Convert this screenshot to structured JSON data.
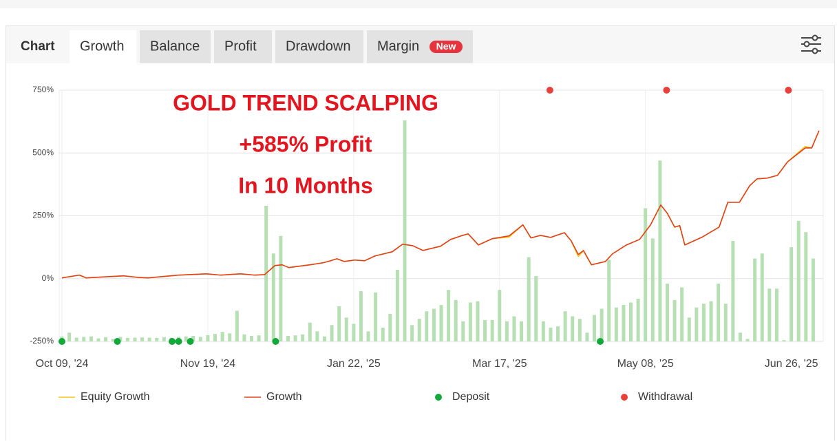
{
  "tabs": {
    "label": "Chart",
    "items": [
      "Growth",
      "Balance",
      "Profit",
      "Drawdown",
      "Margin"
    ],
    "active": 0,
    "badge": "New"
  },
  "chart_data": {
    "type": "line",
    "annotations": [
      "GOLD TREND SCALPING",
      "+585% Profit",
      "In 10 Months"
    ],
    "xlim": [
      0,
      104
    ],
    "xticks": [
      {
        "value": 0,
        "label": "Oct 09, '24"
      },
      {
        "value": 20,
        "label": "Nov 19, '24"
      },
      {
        "value": 40,
        "label": "Jan 22, '25"
      },
      {
        "value": 60,
        "label": "Mar 17, '25"
      },
      {
        "value": 80,
        "label": "May 08, '25"
      },
      {
        "value": 100,
        "label": "Jun 26, '25"
      }
    ],
    "ylim": [
      -250,
      750
    ],
    "yticks": [
      {
        "value": -250,
        "label": "-250%"
      },
      {
        "value": 0,
        "label": "0%"
      },
      {
        "value": 250,
        "label": "250%"
      },
      {
        "value": 500,
        "label": "500%"
      },
      {
        "value": 750,
        "label": "750%"
      }
    ],
    "grid": true,
    "series": [
      {
        "name": "Equity Growth",
        "color": "#f5c518",
        "x": [
          0,
          2.4,
          3.3,
          8.5,
          10.4,
          11.8,
          16,
          19.8,
          21.7,
          24.5,
          26.4,
          27.8,
          29.2,
          30.2,
          31.1,
          34,
          35.8,
          36.8,
          37.7,
          38.7,
          40.1,
          41.5,
          42.9,
          45.3,
          46.7,
          48.1,
          49.5,
          51.9,
          53.3,
          54.7,
          55.7,
          57.1,
          59,
          61.3,
          63.2,
          64.3,
          65.6,
          67,
          68.9,
          69.8,
          70.8,
          71.5,
          72.6,
          74.5,
          75.5,
          77.4,
          79.2,
          80.7,
          82.1,
          83,
          84,
          84.7,
          85.4,
          87.7,
          90.1,
          91.3,
          92.9,
          94.3,
          95.3,
          96.7,
          98.1,
          99.5,
          101.9,
          102.8,
          103.8
        ],
        "values": [
          3,
          14,
          3,
          11,
          5,
          3,
          14,
          19,
          14,
          19,
          14,
          16,
          52,
          55,
          44,
          55,
          63,
          71,
          79,
          68,
          74,
          71,
          90,
          107,
          137,
          131,
          112,
          129,
          156,
          170,
          178,
          134,
          159,
          165,
          214,
          162,
          172,
          164,
          183,
          151,
          88,
          110,
          55,
          68,
          99,
          134,
          156,
          214,
          293,
          260,
          205,
          211,
          134,
          164,
          205,
          304,
          304,
          370,
          397,
          400,
          411,
          465,
          526,
          520,
          589
        ]
      },
      {
        "name": "Growth",
        "color": "#e0401c",
        "x": [
          0,
          2.4,
          3.3,
          8.5,
          10.4,
          11.8,
          16,
          19.8,
          21.7,
          24.5,
          26.4,
          27.8,
          29.2,
          30.2,
          31.1,
          34,
          35.8,
          36.8,
          37.7,
          38.7,
          40.1,
          41.5,
          42.9,
          45.3,
          46.7,
          48.1,
          49.5,
          51.9,
          53.3,
          54.7,
          55.7,
          57.1,
          59,
          61.3,
          63.2,
          64.3,
          65.6,
          67,
          68.9,
          69.8,
          70.8,
          71.5,
          72.6,
          74.5,
          75.5,
          77.4,
          79.2,
          80.7,
          82.1,
          83,
          84,
          84.7,
          85.4,
          87.7,
          90.1,
          91.3,
          92.9,
          94.3,
          95.3,
          96.7,
          98.1,
          99.5,
          101.9,
          102.8,
          103.8
        ],
        "values": [
          3,
          14,
          3,
          11,
          5,
          3,
          14,
          19,
          14,
          19,
          14,
          16,
          52,
          55,
          44,
          55,
          63,
          71,
          79,
          68,
          74,
          71,
          90,
          107,
          137,
          131,
          112,
          129,
          156,
          170,
          178,
          134,
          159,
          170,
          214,
          162,
          172,
          164,
          183,
          151,
          96,
          112,
          55,
          68,
          99,
          134,
          156,
          214,
          293,
          260,
          205,
          211,
          134,
          164,
          205,
          304,
          304,
          370,
          397,
          400,
          411,
          465,
          520,
          520,
          589
        ]
      }
    ],
    "bars": {
      "color": "#b7dfb4",
      "x": [
        0,
        1,
        2,
        3,
        4,
        5,
        6,
        7,
        8,
        9,
        10,
        11,
        12,
        13,
        14,
        15,
        16,
        17,
        18,
        19,
        20,
        21,
        22,
        23,
        24,
        25,
        26,
        27,
        28,
        29,
        30,
        31,
        32,
        33,
        34,
        35,
        36,
        37,
        38,
        39,
        40,
        41,
        42,
        43,
        44,
        45,
        46,
        47,
        48,
        49,
        50,
        51,
        52,
        53,
        54,
        55,
        56,
        57,
        58,
        59,
        60,
        61,
        62,
        63,
        64,
        65,
        66,
        67,
        68,
        69,
        70,
        71,
        72,
        73,
        74,
        75,
        76,
        77,
        78,
        79,
        80,
        81,
        82,
        83,
        84,
        85,
        86,
        87,
        88,
        89,
        90,
        91,
        92,
        93,
        94,
        95,
        96,
        97,
        98,
        99,
        100,
        101,
        102,
        103
      ],
      "values": [
        -230,
        -215,
        -235,
        -232,
        -230,
        -238,
        -233,
        -240,
        -232,
        -236,
        -235,
        -234,
        -235,
        -236,
        -233,
        -235,
        -232,
        -230,
        -228,
        -232,
        -225,
        -220,
        -212,
        -218,
        -128,
        -222,
        -228,
        -226,
        290,
        100,
        170,
        -228,
        -226,
        -222,
        -175,
        -210,
        -230,
        -185,
        -110,
        -155,
        -180,
        -50,
        -210,
        -55,
        -195,
        -140,
        35,
        630,
        -185,
        -160,
        -130,
        -120,
        -105,
        -45,
        -85,
        -170,
        -95,
        -90,
        -165,
        -165,
        -45,
        -170,
        -150,
        -170,
        85,
        10,
        -170,
        -195,
        -190,
        -130,
        -150,
        -160,
        -215,
        -145,
        -120,
        75,
        -115,
        -105,
        -95,
        -80,
        280,
        160,
        470,
        -20,
        -85,
        -35,
        -155,
        -115,
        -100,
        -90,
        -20,
        -100,
        150,
        -215,
        -240,
        80,
        100,
        -40,
        -40,
        -245,
        125,
        230,
        185,
        80
      ]
    },
    "deposits": {
      "name": "Deposit",
      "color": "#12a83a",
      "x": [
        0,
        7.6,
        15.1,
        16,
        17.6,
        29.3,
        73.8
      ],
      "values": [
        -250,
        -250,
        -250,
        -250,
        -250,
        -250,
        -250
      ]
    },
    "withdrawals": {
      "name": "Withdrawal",
      "color": "#e8403a",
      "x": [
        66.9,
        82.9,
        99.6
      ],
      "values": [
        750,
        750,
        750
      ]
    }
  }
}
